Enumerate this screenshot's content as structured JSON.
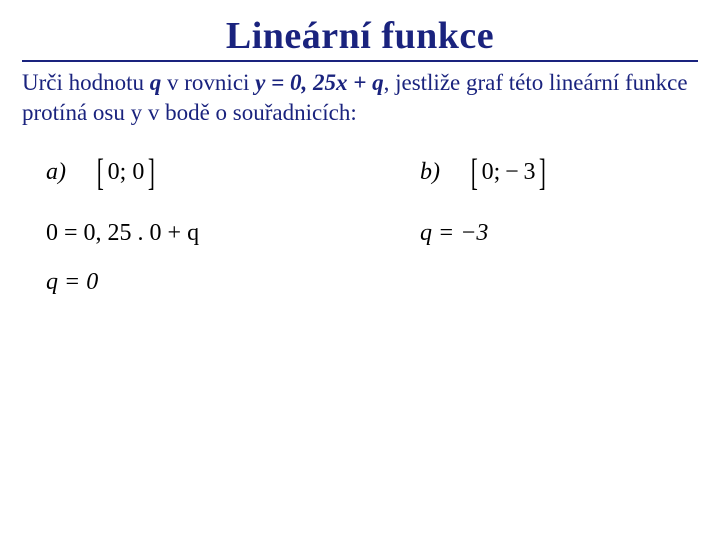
{
  "title": "Lineární funkce",
  "prompt_parts": {
    "p1": "Urči hodnotu ",
    "q": "q",
    "p2": " v rovnici ",
    "eq": "y = 0, 25x + q",
    "p3": ", jestliže graf této lineární funkce protíná osu y v bodě o souřadnicích:"
  },
  "colA": {
    "label": "a)",
    "bracket_inner": "0; 0",
    "step": "0 = 0, 25 . 0 + q",
    "answer": "q = 0"
  },
  "colB": {
    "label": "b)",
    "bracket_inner": "0; − 3",
    "answer": "q = −3"
  },
  "colors": {
    "title": "#1a237e",
    "text": "#000000",
    "background": "#ffffff"
  },
  "fonts": {
    "title_size_pt": 29,
    "body_size_pt": 17,
    "math_size_pt": 18,
    "family": "Times New Roman"
  }
}
